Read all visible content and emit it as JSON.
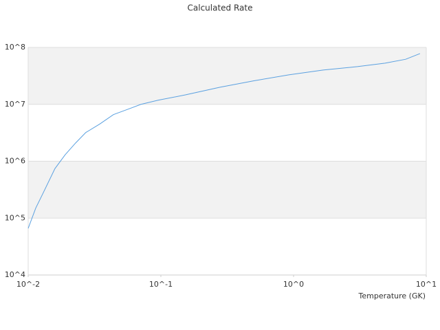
{
  "chart_data": {
    "type": "line",
    "title": "Calculated Rate",
    "x_label": "Temperature (GK)",
    "log_x": true,
    "log_y": true,
    "color": "#5aa0e0",
    "x": [
      0.01,
      0.0114,
      0.0129,
      0.0159,
      0.019,
      0.0228,
      0.0272,
      0.0346,
      0.0439,
      0.0557,
      0.0708,
      0.0953,
      0.154,
      0.279,
      0.507,
      0.92,
      1.67,
      3.03,
      4.89,
      7.0,
      8.97
    ],
    "values": [
      66000,
      150000,
      270000,
      740000,
      1300000,
      2100000,
      3200000,
      4500000,
      6600000,
      8100000,
      10000000,
      11800000,
      14700000,
      20000000,
      26000000,
      33000000,
      40000000,
      46000000,
      53000000,
      62000000,
      78000000
    ],
    "xlim": [
      0.01,
      10
    ],
    "xticks": [
      {
        "value": 0.01,
        "label": "10^-2"
      },
      {
        "value": 0.1,
        "label": "10^-1"
      },
      {
        "value": 1,
        "label": "10^0"
      },
      {
        "value": 10,
        "label": "10^1"
      }
    ],
    "ylim": [
      10000,
      100000000
    ],
    "yticks": [
      {
        "value": 10000,
        "label": "10^4"
      },
      {
        "value": 100000,
        "label": "10^5"
      },
      {
        "value": 1000000,
        "label": "10^6"
      },
      {
        "value": 10000000,
        "label": "10^7"
      },
      {
        "value": 100000000,
        "label": "10^8"
      }
    ],
    "grid": true
  }
}
